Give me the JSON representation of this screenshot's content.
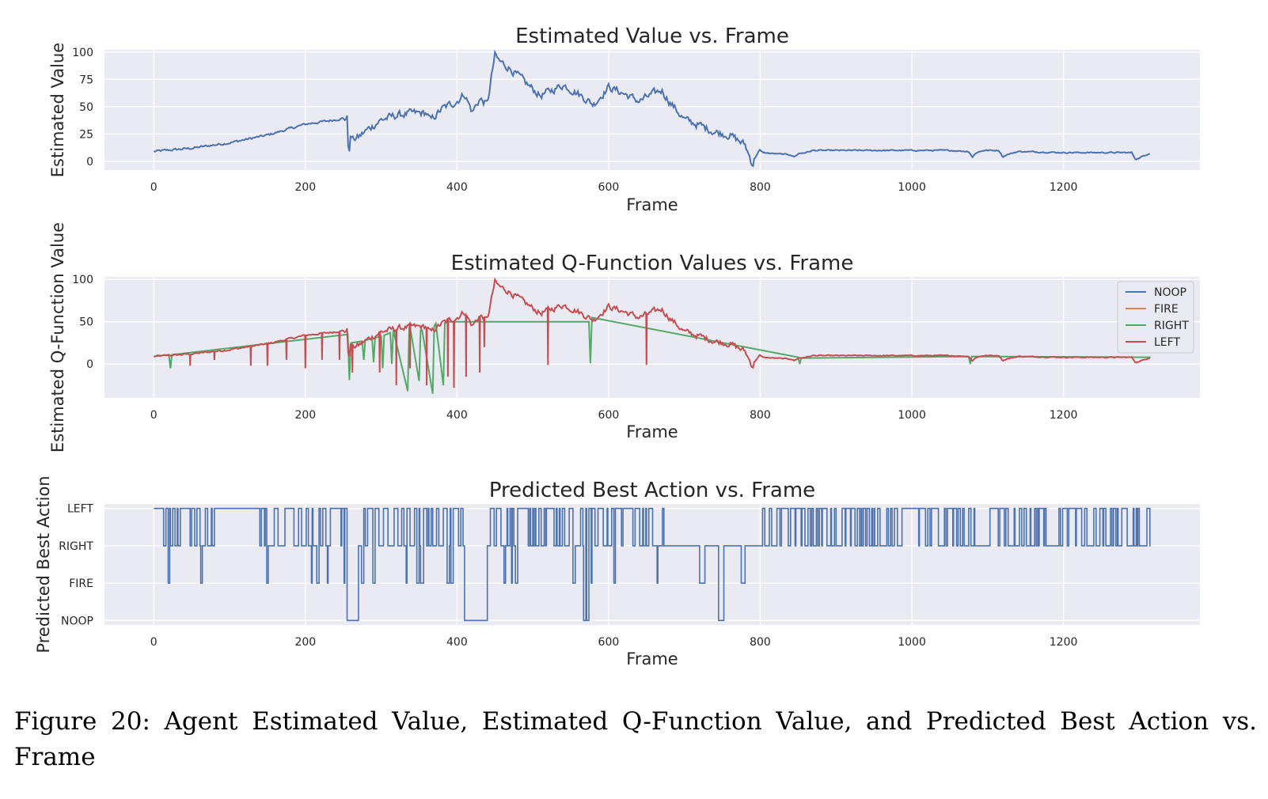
{
  "caption": "Figure 20:  Agent Estimated Value, Estimated Q-Function Value, and Predicted Best Action vs. Frame",
  "colors": {
    "NOOP": "#4c72b0",
    "FIRE": "#dd8452",
    "RIGHT": "#55a868",
    "LEFT": "#c44e52",
    "axes_bg": "#eaeaf2",
    "grid": "#ffffff"
  },
  "chart_data": [
    {
      "type": "line",
      "title": "Estimated Value vs. Frame",
      "xlabel": "Frame",
      "ylabel": "Estimated Value",
      "xlim": [
        -65,
        1380
      ],
      "ylim": [
        -8,
        102
      ],
      "xticks": [
        0,
        200,
        400,
        600,
        800,
        1000,
        1200
      ],
      "yticks": [
        0,
        25,
        50,
        75,
        100
      ],
      "grid": true,
      "series": [
        {
          "color_key": "NOOP",
          "x": [
            0,
            50,
            100,
            150,
            200,
            230,
            255,
            257,
            260,
            262,
            270,
            280,
            300,
            320,
            340,
            360,
            365,
            380,
            400,
            410,
            420,
            430,
            440,
            445,
            450,
            455,
            470,
            490,
            510,
            540,
            560,
            580,
            600,
            620,
            640,
            660,
            670,
            680,
            700,
            720,
            740,
            760,
            780,
            790,
            795,
            800,
            820,
            840,
            845,
            850,
            860,
            870,
            900,
            950,
            1000,
            1050,
            1075,
            1080,
            1085,
            1095,
            1115,
            1120,
            1125,
            1140,
            1200,
            1250,
            1290,
            1295,
            1300,
            1315
          ],
          "y": [
            9,
            12,
            17,
            24,
            34,
            37,
            40,
            5,
            25,
            20,
            22,
            28,
            38,
            42,
            44,
            44,
            37,
            48,
            55,
            62,
            45,
            57,
            52,
            75,
            97,
            92,
            85,
            72,
            60,
            70,
            62,
            52,
            68,
            62,
            55,
            62,
            65,
            55,
            38,
            33,
            27,
            24,
            15,
            -3,
            8,
            8,
            7,
            6,
            4,
            7,
            8,
            10,
            10,
            10,
            10,
            10,
            9,
            4,
            8,
            10,
            10,
            4,
            6,
            9,
            8,
            8,
            8,
            2,
            3,
            8
          ]
        }
      ]
    },
    {
      "type": "line",
      "title": "Estimated Q-Function Values vs. Frame",
      "xlabel": "Frame",
      "ylabel": "Estimated Q-Function Value",
      "xlim": [
        -65,
        1380
      ],
      "ylim": [
        -40,
        103
      ],
      "xticks": [
        0,
        200,
        400,
        600,
        800,
        1000,
        1200
      ],
      "yticks": [
        0,
        50,
        100
      ],
      "grid": true,
      "legend": "upper-right",
      "series": [
        {
          "name": "NOOP",
          "color_key": "NOOP"
        },
        {
          "name": "FIRE",
          "color_key": "FIRE"
        },
        {
          "name": "RIGHT",
          "color_key": "RIGHT",
          "x": [
            0,
            20,
            22,
            24,
            256,
            258,
            260,
            275,
            277,
            279,
            288,
            290,
            292,
            300,
            302,
            304,
            312,
            314,
            316,
            335,
            337,
            339,
            350,
            352,
            354,
            368,
            370,
            372,
            382,
            384,
            386,
            574,
            576,
            578,
            850,
            852,
            854,
            1075,
            1077,
            1079,
            1315
          ],
          "y": [
            9,
            11,
            -5,
            11,
            35,
            -19,
            25,
            27,
            5,
            28,
            30,
            2,
            31,
            33,
            -5,
            34,
            37,
            0,
            40,
            -32,
            41,
            39,
            -20,
            40,
            40,
            -35,
            45,
            48,
            -25,
            49,
            50,
            50,
            1,
            55,
            8,
            0,
            7,
            9,
            0,
            9,
            8
          ]
        },
        {
          "name": "LEFT",
          "color_key": "LEFT",
          "x": [
            0,
            50,
            100,
            150,
            200,
            230,
            255,
            257,
            260,
            262,
            270,
            280,
            300,
            320,
            340,
            360,
            365,
            380,
            400,
            410,
            420,
            430,
            440,
            445,
            450,
            455,
            470,
            490,
            510,
            540,
            560,
            580,
            600,
            620,
            640,
            660,
            670,
            680,
            700,
            720,
            740,
            760,
            780,
            790,
            795,
            800,
            820,
            840,
            845,
            850,
            860,
            870,
            900,
            950,
            1000,
            1050,
            1075,
            1080,
            1085,
            1095,
            1115,
            1120,
            1125,
            1140,
            1200,
            1250,
            1290,
            1295,
            1300,
            1315
          ],
          "y": [
            9,
            12,
            17,
            24,
            34,
            37,
            40,
            5,
            25,
            20,
            22,
            28,
            38,
            42,
            44,
            44,
            37,
            48,
            55,
            62,
            45,
            57,
            52,
            75,
            97,
            92,
            85,
            72,
            60,
            70,
            62,
            52,
            68,
            62,
            55,
            62,
            65,
            55,
            38,
            33,
            27,
            24,
            15,
            -3,
            8,
            8,
            7,
            6,
            4,
            7,
            8,
            10,
            10,
            10,
            10,
            10,
            9,
            4,
            8,
            10,
            10,
            4,
            6,
            9,
            8,
            8,
            8,
            2,
            3,
            8
          ],
          "dips": [
            [
              48,
              -2
            ],
            [
              80,
              5
            ],
            [
              128,
              -2
            ],
            [
              150,
              -2
            ],
            [
              175,
              5
            ],
            [
              200,
              -5
            ],
            [
              222,
              5
            ],
            [
              245,
              5
            ],
            [
              262,
              -10
            ],
            [
              298,
              -10
            ],
            [
              320,
              -25
            ],
            [
              338,
              -5
            ],
            [
              360,
              -25
            ],
            [
              388,
              -15
            ],
            [
              396,
              -28
            ],
            [
              412,
              -15
            ],
            [
              430,
              -10
            ],
            [
              436,
              20
            ],
            [
              520,
              -1
            ],
            [
              650,
              -1
            ]
          ]
        }
      ]
    },
    {
      "type": "line",
      "step": true,
      "title": "Predicted Best Action vs. Frame",
      "xlabel": "Frame",
      "ylabel": "Predicted Best Action",
      "xlim": [
        -65,
        1380
      ],
      "ylim": [
        -0.12,
        3.12
      ],
      "xticks": [
        0,
        200,
        400,
        600,
        800,
        1000,
        1200
      ],
      "yticks": [
        0,
        1,
        2,
        3
      ],
      "yticklabels": [
        "NOOP",
        "FIRE",
        "RIGHT",
        "LEFT"
      ],
      "grid": true,
      "series": [
        {
          "color_key": "NOOP",
          "segments": [
            [
              0,
              80,
              "dense",
              [
                2,
                3
              ],
              [
                0,
                1
              ]
            ],
            [
              80,
              140,
              "flat",
              3
            ],
            [
              140,
              160,
              "dense",
              [
                2,
                3
              ],
              [
                1
              ]
            ],
            [
              160,
              230,
              "dense",
              [
                2,
                3
              ],
              [
                1
              ]
            ],
            [
              230,
              255,
              "dense",
              [
                2,
                3
              ],
              [
                1
              ]
            ],
            [
              255,
              270,
              "flat",
              0
            ],
            [
              270,
              360,
              "dense",
              [
                2,
                3
              ],
              [
                1
              ]
            ],
            [
              360,
              410,
              "dense",
              [
                2,
                3
              ],
              [
                1
              ]
            ],
            [
              410,
              440,
              "flat",
              0
            ],
            [
              440,
              475,
              "dense",
              [
                2,
                3
              ],
              [
                1,
                0
              ]
            ],
            [
              475,
              560,
              "dense",
              [
                2,
                3
              ],
              [
                1
              ]
            ],
            [
              560,
              600,
              "dense",
              [
                2,
                3
              ],
              [
                1,
                0
              ]
            ],
            [
              600,
              680,
              "dense",
              [
                2,
                3
              ],
              [
                1
              ]
            ],
            [
              680,
              720,
              "flat",
              2
            ],
            [
              720,
              727,
              "flat",
              1
            ],
            [
              727,
              745,
              "flat",
              2
            ],
            [
              745,
              752,
              "flat",
              0
            ],
            [
              752,
              775,
              "flat",
              2
            ],
            [
              775,
              780,
              "flat",
              1
            ],
            [
              780,
              800,
              "flat",
              2
            ],
            [
              800,
              1315,
              "dense",
              [
                2,
                3
              ],
              []
            ]
          ]
        }
      ]
    }
  ]
}
